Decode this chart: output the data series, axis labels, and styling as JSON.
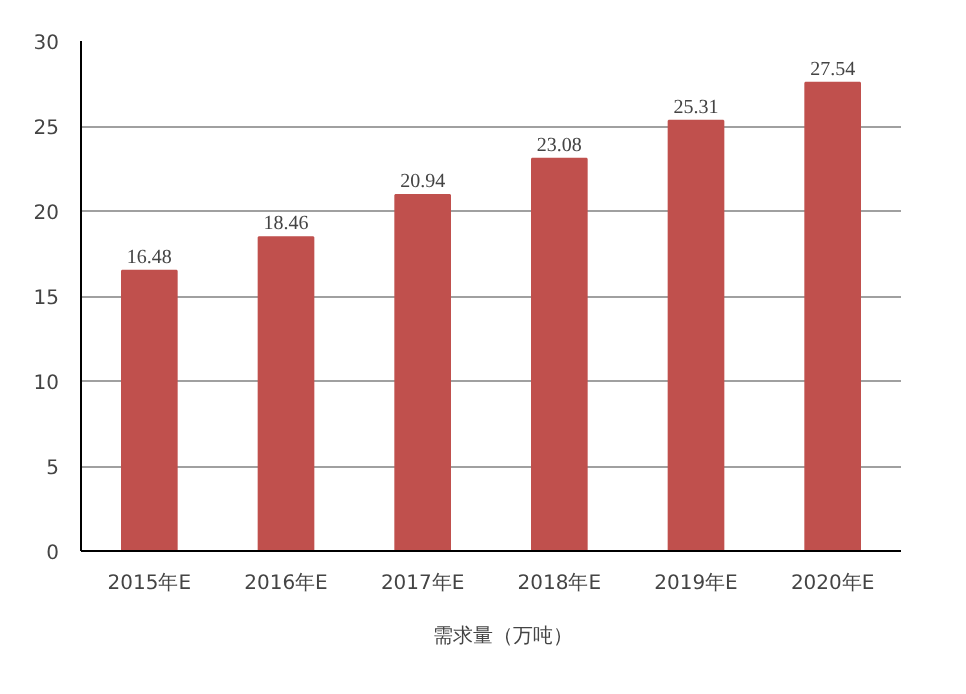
{
  "chart_data": {
    "type": "bar",
    "categories": [
      "2015年E",
      "2016年E",
      "2017年E",
      "2018年E",
      "2019年E",
      "2020年E"
    ],
    "series": [
      {
        "name": "需求量（万吨）",
        "color": "#c0504d",
        "values": [
          16.48,
          18.46,
          20.94,
          23.08,
          25.31,
          27.54
        ]
      }
    ],
    "ylim": [
      0,
      30
    ],
    "yticks": [
      0,
      5,
      10,
      15,
      20,
      25,
      30
    ],
    "grid": "y",
    "legend": "bottom",
    "data_labels": true
  }
}
